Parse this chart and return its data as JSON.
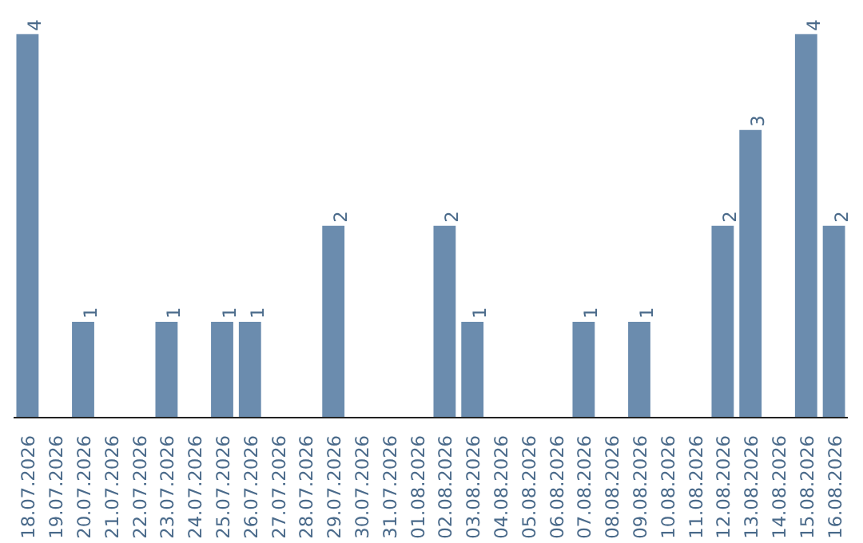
{
  "chart_data": {
    "type": "bar",
    "categories": [
      "18.07.2026",
      "19.07.2026",
      "20.07.2026",
      "21.07.2026",
      "22.07.2026",
      "23.07.2026",
      "24.07.2026",
      "25.07.2026",
      "26.07.2026",
      "27.07.2026",
      "28.07.2026",
      "29.07.2026",
      "30.07.2026",
      "31.07.2026",
      "01.08.2026",
      "02.08.2026",
      "03.08.2026",
      "04.08.2026",
      "05.08.2026",
      "06.08.2026",
      "07.08.2026",
      "08.08.2026",
      "09.08.2026",
      "10.08.2026",
      "11.08.2026",
      "12.08.2026",
      "13.08.2026",
      "14.08.2026",
      "15.08.2026",
      "16.08.2026"
    ],
    "values": [
      4,
      0,
      1,
      0,
      0,
      1,
      0,
      1,
      1,
      0,
      0,
      2,
      0,
      0,
      0,
      2,
      1,
      0,
      0,
      0,
      1,
      0,
      1,
      0,
      0,
      2,
      3,
      0,
      4,
      2
    ],
    "value_labels": [
      "4",
      null,
      "1",
      null,
      null,
      "1",
      null,
      "1",
      "1",
      null,
      null,
      "2",
      null,
      null,
      null,
      "2",
      "1",
      null,
      null,
      null,
      "1",
      null,
      "1",
      null,
      null,
      "2",
      "3",
      null,
      "4",
      "2"
    ],
    "color": "#6b8cae",
    "tick_labels": "x"
  }
}
